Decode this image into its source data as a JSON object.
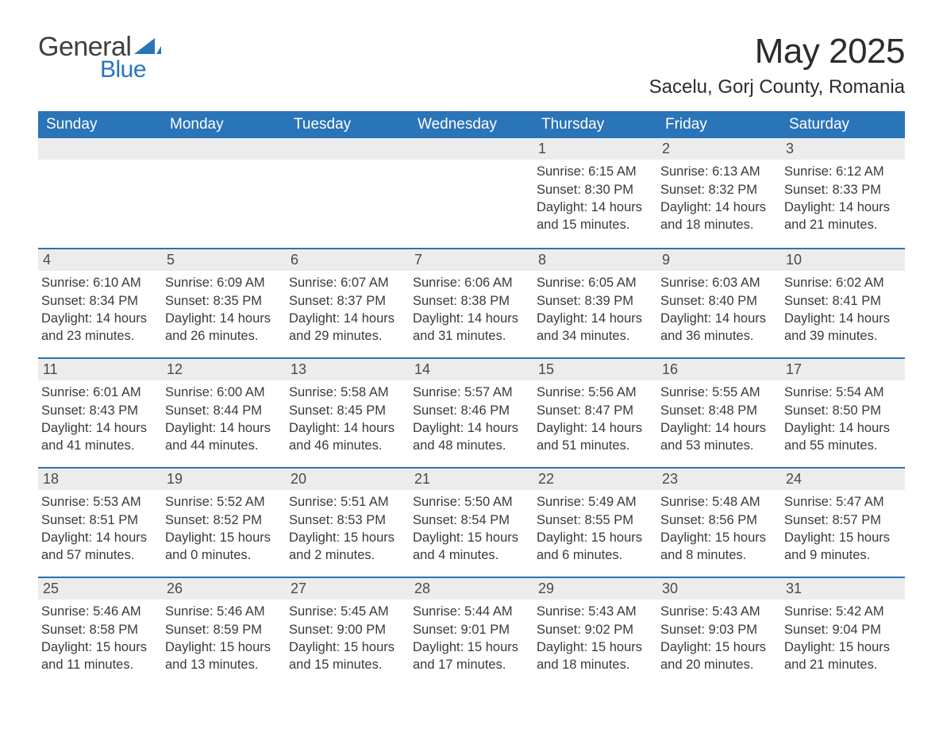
{
  "brand": {
    "word1": "General",
    "word2": "Blue",
    "accent_color": "#2a74b8",
    "text_color": "#3f3f3f"
  },
  "title": "May 2025",
  "subtitle": "Sacelu, Gorj County, Romania",
  "colors": {
    "header_bg": "#2a74b8",
    "header_text": "#ffffff",
    "daybar_bg": "#ececec",
    "daybar_border": "#2a74b8",
    "body_text": "#3a3a3a",
    "page_bg": "#ffffff"
  },
  "weekdays": [
    "Sunday",
    "Monday",
    "Tuesday",
    "Wednesday",
    "Thursday",
    "Friday",
    "Saturday"
  ],
  "weeks": [
    [
      null,
      null,
      null,
      null,
      {
        "d": "1",
        "sr": "6:15 AM",
        "ss": "8:30 PM",
        "dl": "14 hours and 15 minutes."
      },
      {
        "d": "2",
        "sr": "6:13 AM",
        "ss": "8:32 PM",
        "dl": "14 hours and 18 minutes."
      },
      {
        "d": "3",
        "sr": "6:12 AM",
        "ss": "8:33 PM",
        "dl": "14 hours and 21 minutes."
      }
    ],
    [
      {
        "d": "4",
        "sr": "6:10 AM",
        "ss": "8:34 PM",
        "dl": "14 hours and 23 minutes."
      },
      {
        "d": "5",
        "sr": "6:09 AM",
        "ss": "8:35 PM",
        "dl": "14 hours and 26 minutes."
      },
      {
        "d": "6",
        "sr": "6:07 AM",
        "ss": "8:37 PM",
        "dl": "14 hours and 29 minutes."
      },
      {
        "d": "7",
        "sr": "6:06 AM",
        "ss": "8:38 PM",
        "dl": "14 hours and 31 minutes."
      },
      {
        "d": "8",
        "sr": "6:05 AM",
        "ss": "8:39 PM",
        "dl": "14 hours and 34 minutes."
      },
      {
        "d": "9",
        "sr": "6:03 AM",
        "ss": "8:40 PM",
        "dl": "14 hours and 36 minutes."
      },
      {
        "d": "10",
        "sr": "6:02 AM",
        "ss": "8:41 PM",
        "dl": "14 hours and 39 minutes."
      }
    ],
    [
      {
        "d": "11",
        "sr": "6:01 AM",
        "ss": "8:43 PM",
        "dl": "14 hours and 41 minutes."
      },
      {
        "d": "12",
        "sr": "6:00 AM",
        "ss": "8:44 PM",
        "dl": "14 hours and 44 minutes."
      },
      {
        "d": "13",
        "sr": "5:58 AM",
        "ss": "8:45 PM",
        "dl": "14 hours and 46 minutes."
      },
      {
        "d": "14",
        "sr": "5:57 AM",
        "ss": "8:46 PM",
        "dl": "14 hours and 48 minutes."
      },
      {
        "d": "15",
        "sr": "5:56 AM",
        "ss": "8:47 PM",
        "dl": "14 hours and 51 minutes."
      },
      {
        "d": "16",
        "sr": "5:55 AM",
        "ss": "8:48 PM",
        "dl": "14 hours and 53 minutes."
      },
      {
        "d": "17",
        "sr": "5:54 AM",
        "ss": "8:50 PM",
        "dl": "14 hours and 55 minutes."
      }
    ],
    [
      {
        "d": "18",
        "sr": "5:53 AM",
        "ss": "8:51 PM",
        "dl": "14 hours and 57 minutes."
      },
      {
        "d": "19",
        "sr": "5:52 AM",
        "ss": "8:52 PM",
        "dl": "15 hours and 0 minutes."
      },
      {
        "d": "20",
        "sr": "5:51 AM",
        "ss": "8:53 PM",
        "dl": "15 hours and 2 minutes."
      },
      {
        "d": "21",
        "sr": "5:50 AM",
        "ss": "8:54 PM",
        "dl": "15 hours and 4 minutes."
      },
      {
        "d": "22",
        "sr": "5:49 AM",
        "ss": "8:55 PM",
        "dl": "15 hours and 6 minutes."
      },
      {
        "d": "23",
        "sr": "5:48 AM",
        "ss": "8:56 PM",
        "dl": "15 hours and 8 minutes."
      },
      {
        "d": "24",
        "sr": "5:47 AM",
        "ss": "8:57 PM",
        "dl": "15 hours and 9 minutes."
      }
    ],
    [
      {
        "d": "25",
        "sr": "5:46 AM",
        "ss": "8:58 PM",
        "dl": "15 hours and 11 minutes."
      },
      {
        "d": "26",
        "sr": "5:46 AM",
        "ss": "8:59 PM",
        "dl": "15 hours and 13 minutes."
      },
      {
        "d": "27",
        "sr": "5:45 AM",
        "ss": "9:00 PM",
        "dl": "15 hours and 15 minutes."
      },
      {
        "d": "28",
        "sr": "5:44 AM",
        "ss": "9:01 PM",
        "dl": "15 hours and 17 minutes."
      },
      {
        "d": "29",
        "sr": "5:43 AM",
        "ss": "9:02 PM",
        "dl": "15 hours and 18 minutes."
      },
      {
        "d": "30",
        "sr": "5:43 AM",
        "ss": "9:03 PM",
        "dl": "15 hours and 20 minutes."
      },
      {
        "d": "31",
        "sr": "5:42 AM",
        "ss": "9:04 PM",
        "dl": "15 hours and 21 minutes."
      }
    ]
  ],
  "labels": {
    "sunrise": "Sunrise: ",
    "sunset": "Sunset: ",
    "daylight": "Daylight: "
  }
}
